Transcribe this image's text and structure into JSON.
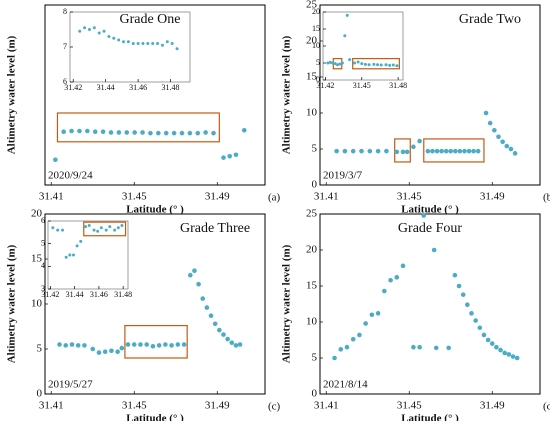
{
  "chart_data": [
    {
      "type": "scatter",
      "title": "Grade One",
      "annotation": "2020/9/24",
      "panel_label": "(a)",
      "xlabel": "Latitude (° )",
      "ylabel": "Altimetry water level (m)",
      "color": "#4bacc6",
      "xlim": [
        31.407,
        31.513
      ],
      "ylim": [
        0,
        25
      ],
      "xticks": [
        31.41,
        31.45,
        31.49
      ],
      "x": [
        31.412,
        31.416,
        31.4198,
        31.4236,
        31.4274,
        31.4312,
        31.435,
        31.4388,
        31.4426,
        31.4464,
        31.4502,
        31.454,
        31.4578,
        31.4616,
        31.4654,
        31.4692,
        31.473,
        31.4768,
        31.4806,
        31.4844,
        31.4882,
        31.493,
        31.496,
        31.499,
        31.503
      ],
      "values": [
        3.5,
        7.4,
        7.5,
        7.5,
        7.5,
        7.4,
        7.4,
        7.3,
        7.3,
        7.3,
        7.3,
        7.3,
        7.2,
        7.2,
        7.2,
        7.2,
        7.2,
        7.2,
        7.2,
        7.3,
        7.2,
        3.8,
        4.0,
        4.2,
        7.6
      ],
      "highlights": [
        [
          31.413,
          31.491,
          6,
          10
        ]
      ],
      "inset": {
        "xlim": [
          31.418,
          31.492
        ],
        "ylim": [
          6,
          8
        ],
        "xticks": [
          31.42,
          31.44,
          31.46,
          31.48
        ],
        "yticks": [
          6,
          7,
          8
        ],
        "x": [
          31.424,
          31.427,
          31.43,
          31.433,
          31.436,
          31.439,
          31.442,
          31.445,
          31.448,
          31.451,
          31.454,
          31.457,
          31.46,
          31.463,
          31.466,
          31.469,
          31.472,
          31.475,
          31.478,
          31.481,
          31.484
        ],
        "values": [
          7.45,
          7.55,
          7.5,
          7.55,
          7.4,
          7.45,
          7.3,
          7.25,
          7.2,
          7.15,
          7.15,
          7.1,
          7.1,
          7.1,
          7.1,
          7.1,
          7.1,
          7.05,
          7.15,
          7.1,
          6.95
        ]
      }
    },
    {
      "type": "scatter",
      "title": "Grade Two",
      "annotation": "2019/3/7",
      "panel_label": "(b)",
      "xlabel": "Latitude (° )",
      "ylabel": "Altimetry water level (m)",
      "color": "#4bacc6",
      "xlim": [
        31.407,
        31.513
      ],
      "ylim": [
        0,
        25
      ],
      "xticks": [
        31.41,
        31.45,
        31.49
      ],
      "yticks": [
        0,
        5,
        10,
        15,
        20,
        25
      ],
      "x": [
        31.415,
        31.419,
        31.423,
        31.427,
        31.431,
        31.435,
        31.439,
        31.444,
        31.447,
        31.449,
        31.452,
        31.455,
        31.459,
        31.4612,
        31.4634,
        31.4656,
        31.4678,
        31.47,
        31.4722,
        31.4744,
        31.4766,
        31.4788,
        31.481,
        31.4832,
        31.487,
        31.489,
        31.491,
        31.493,
        31.495,
        31.497,
        31.499,
        31.501
      ],
      "values": [
        4.7,
        4.7,
        4.7,
        4.7,
        4.7,
        4.7,
        4.7,
        4.6,
        4.6,
        4.6,
        5.3,
        6.1,
        4.7,
        4.7,
        4.7,
        4.7,
        4.7,
        4.7,
        4.7,
        4.7,
        4.7,
        4.7,
        4.7,
        4.7,
        10,
        8.6,
        7.6,
        6.7,
        6,
        5.4,
        5.0,
        4.4
      ],
      "highlights": [
        [
          31.443,
          31.4505,
          3.2,
          6.4
        ],
        [
          31.457,
          31.486,
          3.2,
          6.4
        ]
      ],
      "inset": {
        "xlim": [
          31.418,
          31.484
        ],
        "ylim": [
          0,
          20
        ],
        "xticks": [
          31.42,
          31.45,
          31.48
        ],
        "yticks": [
          0,
          5,
          10,
          15,
          20
        ],
        "x": [
          31.422,
          31.424,
          31.426,
          31.428,
          31.43,
          31.432,
          31.434,
          31.436,
          31.438,
          31.44,
          31.444,
          31.447,
          31.45,
          31.453,
          31.456,
          31.46,
          31.463,
          31.466,
          31.47,
          31.473,
          31.476,
          31.479
        ],
        "values": [
          5,
          5.2,
          5,
          4.8,
          4.5,
          4.7,
          5,
          13,
          19,
          6,
          5,
          5.3,
          4.8,
          4.6,
          4.5,
          4.6,
          4.5,
          4.4,
          4.5,
          4.3,
          4.4,
          4.2
        ],
        "highlights": [
          [
            31.4265,
            31.4335,
            3.3,
            6.3
          ],
          [
            31.4425,
            31.481,
            3.3,
            6.3
          ]
        ]
      }
    },
    {
      "type": "scatter",
      "title": "Grade Three",
      "annotation": "2019/5/27",
      "panel_label": "(c)",
      "xlabel": "Latitude (° )",
      "ylabel": "Altimetry water level (m)",
      "color": "#4bacc6",
      "xlim": [
        31.407,
        31.513
      ],
      "ylim": [
        0,
        20
      ],
      "xticks": [
        31.41,
        31.45,
        31.49
      ],
      "yticks": [
        0,
        5,
        10,
        15,
        20
      ],
      "x": [
        31.414,
        31.417,
        31.42,
        31.423,
        31.426,
        31.43,
        31.433,
        31.436,
        31.439,
        31.442,
        31.444,
        31.447,
        31.45,
        31.453,
        31.456,
        31.459,
        31.462,
        31.465,
        31.468,
        31.471,
        31.474,
        31.477,
        31.479,
        31.481,
        31.483,
        31.485,
        31.487,
        31.489,
        31.491,
        31.493,
        31.495,
        31.497,
        31.499,
        31.501
      ],
      "values": [
        5.5,
        5.4,
        5.5,
        5.4,
        5.4,
        5.0,
        4.6,
        4.7,
        4.8,
        4.7,
        5.1,
        5.5,
        5.5,
        5.5,
        5.5,
        5.3,
        5.4,
        5.5,
        5.4,
        5.5,
        5.5,
        13.2,
        13.7,
        12.2,
        10.6,
        9.6,
        8.7,
        7.8,
        7.1,
        6.6,
        6.1,
        5.7,
        5.4,
        5.5
      ],
      "highlights": [
        [
          31.4455,
          31.4755,
          4.0,
          7.6
        ]
      ],
      "inset": {
        "xlim": [
          31.418,
          31.484
        ],
        "ylim": [
          3,
          6
        ],
        "xticks": [
          31.42,
          31.44,
          31.46,
          31.48
        ],
        "yticks": [
          3,
          4,
          5,
          6
        ],
        "x": [
          31.422,
          31.426,
          31.43,
          31.433,
          31.436,
          31.439,
          31.442,
          31.445,
          31.449,
          31.452,
          31.456,
          31.459,
          31.462,
          31.466,
          31.469,
          31.473,
          31.476,
          31.479
        ],
        "values": [
          5.7,
          5.6,
          5.6,
          4.4,
          4.5,
          4.5,
          4.9,
          5.1,
          5.75,
          5.8,
          5.6,
          5.55,
          5.7,
          5.6,
          5.75,
          5.6,
          5.7,
          5.8
        ],
        "highlights": [
          [
            31.4475,
            31.482,
            5.35,
            5.95
          ]
        ]
      }
    },
    {
      "type": "scatter",
      "title": "Grade Four",
      "annotation": "2021/8/14",
      "panel_label": "(d)",
      "xlabel": "Latitude (° )",
      "ylabel": "Altimetry water level (m)",
      "color": "#4bacc6",
      "xlim": [
        31.407,
        31.513
      ],
      "ylim": [
        0,
        25
      ],
      "xticks": [
        31.41,
        31.45,
        31.49
      ],
      "yticks": [
        0,
        5,
        10,
        15,
        20,
        25
      ],
      "x": [
        31.414,
        31.417,
        31.42,
        31.423,
        31.426,
        31.429,
        31.432,
        31.435,
        31.438,
        31.441,
        31.444,
        31.447,
        31.452,
        31.455,
        31.457,
        31.462,
        31.463,
        31.469,
        31.472,
        31.474,
        31.476,
        31.478,
        31.48,
        31.482,
        31.484,
        31.486,
        31.488,
        31.49,
        31.492,
        31.494,
        31.496,
        31.498,
        31.5,
        31.502
      ],
      "values": [
        5,
        6.2,
        6.5,
        7.6,
        8.2,
        9.8,
        11,
        11.2,
        14.3,
        15.8,
        16.2,
        17.8,
        6.5,
        6.5,
        24.8,
        20,
        6.4,
        6.4,
        16.5,
        15,
        13.8,
        12.4,
        11.2,
        10.2,
        9.2,
        8.2,
        7.5,
        7.0,
        6.5,
        6.1,
        5.7,
        5.5,
        5.2,
        5.0
      ]
    }
  ]
}
